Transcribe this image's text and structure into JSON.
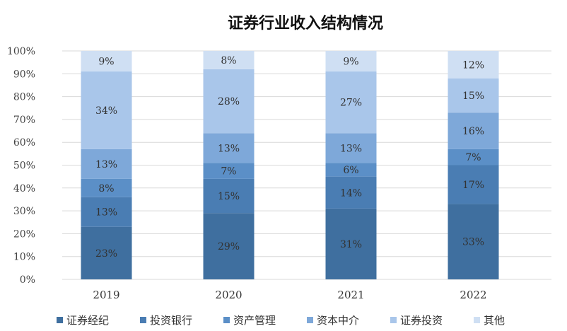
{
  "chart_data": {
    "type": "bar",
    "stacked": true,
    "title": "证券行业收入结构情况",
    "xlabel": "",
    "ylabel": "",
    "ylim": [
      0,
      100
    ],
    "yticks": [
      "0%",
      "10%",
      "20%",
      "30%",
      "40%",
      "50%",
      "60%",
      "70%",
      "80%",
      "90%",
      "100%"
    ],
    "categories": [
      "2019",
      "2020",
      "2021",
      "2022"
    ],
    "grid": true,
    "legend_position": "bottom",
    "series": [
      {
        "name": "证券经纪",
        "color": "#3f6f9f",
        "values": [
          23,
          29,
          31,
          33
        ],
        "labels": [
          "23%",
          "29%",
          "31%",
          "33%"
        ]
      },
      {
        "name": "投资银行",
        "color": "#4a7db3",
        "values": [
          13,
          15,
          14,
          17
        ],
        "labels": [
          "13%",
          "15%",
          "14%",
          "17%"
        ]
      },
      {
        "name": "资产管理",
        "color": "#5b8fc7",
        "values": [
          8,
          7,
          6,
          7
        ],
        "labels": [
          "8%",
          "7%",
          "6%",
          "7%"
        ]
      },
      {
        "name": "资本中介",
        "color": "#7ea8d9",
        "values": [
          13,
          13,
          13,
          16
        ],
        "labels": [
          "13%",
          "13%",
          "13%",
          "16%"
        ]
      },
      {
        "name": "证券投资",
        "color": "#a9c6ea",
        "values": [
          34,
          28,
          27,
          15
        ],
        "labels": [
          "34%",
          "28%",
          "27%",
          "15%"
        ]
      },
      {
        "name": "其他",
        "color": "#cfdff3",
        "values": [
          9,
          8,
          9,
          12
        ],
        "labels": [
          "9%",
          "8%",
          "9%",
          "12%"
        ]
      }
    ]
  }
}
